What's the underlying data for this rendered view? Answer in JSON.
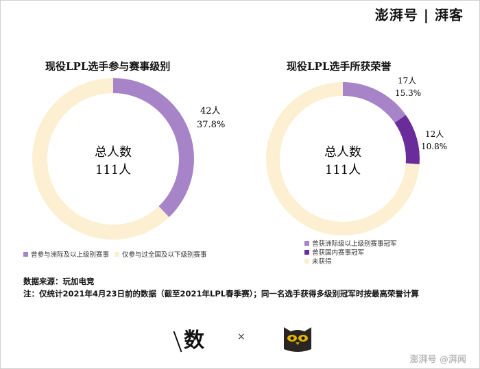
{
  "brand": "澎湃号 | 湃客",
  "chart_data": [
    {
      "type": "pie",
      "title": "现役LPL选手参与赛事级别",
      "center_label": [
        "总人数",
        "111人"
      ],
      "labels": [
        "曾参与洲际及以上级别赛事",
        "仅参与过全国及以下级别赛事"
      ],
      "values": [
        42,
        69
      ],
      "percents": [
        "37.8%",
        ""
      ],
      "value_labels": [
        "42人",
        ""
      ],
      "colors": [
        "#a784c8",
        "#fdf0d2"
      ],
      "legend": "bottom"
    },
    {
      "type": "pie",
      "title": "现役LPL选手所获荣誉",
      "center_label": [
        "总人数",
        "111人"
      ],
      "labels": [
        "曾获洲际级以上级别赛事冠军",
        "曾获国内赛事冠军",
        "未获得"
      ],
      "values": [
        17,
        12,
        82
      ],
      "percents": [
        "15.3%",
        "10.8%",
        ""
      ],
      "value_labels": [
        "17人",
        "12人",
        ""
      ],
      "colors": [
        "#a784c8",
        "#6a2c9b",
        "#fdf0d2"
      ],
      "legend": "bottom"
    }
  ],
  "notes": {
    "source": "数据来源：玩加电竞",
    "note": "注：仅统计2021年4月23日前的数据（截至2021年LPL春季赛）；同一名选手获得多级别冠军时按最高荣誉计算"
  },
  "logos": {
    "left": "数",
    "separator": "×",
    "owl_icon": "owl-logo-icon"
  },
  "footer": "澎湃号 @湃闻"
}
